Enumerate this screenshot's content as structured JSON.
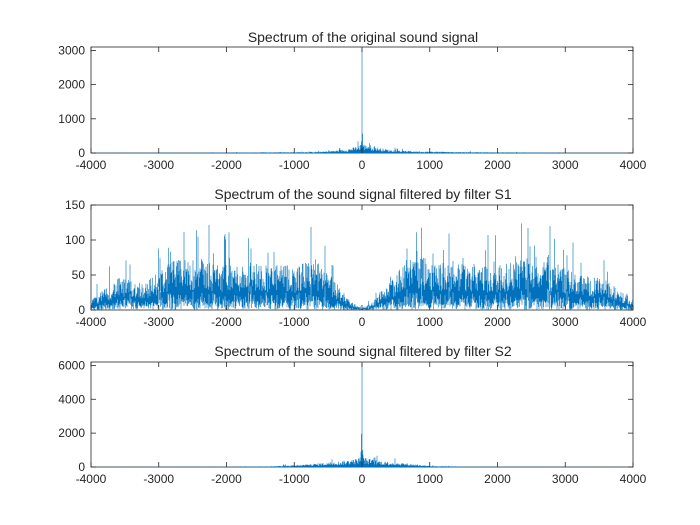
{
  "figure": {
    "background": "#ffffff",
    "axes_color": "#262626",
    "line_color": "#0072BD"
  },
  "chart_data": [
    {
      "type": "line",
      "title": "Spectrum of the original sound signal",
      "xlabel": "",
      "ylabel": "",
      "xlim": [
        -4000,
        4000
      ],
      "ylim": [
        0,
        3100
      ],
      "xticks": [
        -4000,
        -3000,
        -2000,
        -1000,
        0,
        1000,
        2000,
        3000,
        4000
      ],
      "xtick_labels": [
        "-4000",
        "-3000",
        "-2000",
        "-1000",
        "0",
        "1000",
        "2000",
        "3000",
        "4000"
      ],
      "yticks": [
        0,
        1000,
        2000,
        3000
      ],
      "ytick_labels": [
        "0",
        "1000",
        "2000",
        "3000"
      ],
      "grid": false,
      "envelope": {
        "x": [
          -4000,
          -3000,
          -2000,
          -1500,
          -1000,
          -600,
          -400,
          -250,
          -150,
          -80,
          -40,
          -10,
          0,
          10,
          40,
          80,
          150,
          250,
          400,
          600,
          1000,
          1500,
          2000,
          3000,
          4000
        ],
        "y": [
          10,
          15,
          25,
          40,
          55,
          80,
          150,
          200,
          300,
          380,
          450,
          700,
          3050,
          700,
          450,
          550,
          420,
          300,
          200,
          130,
          90,
          60,
          40,
          20,
          10
        ]
      }
    },
    {
      "type": "line",
      "title": "Spectrum of the sound signal filtered by filter S1",
      "xlabel": "",
      "ylabel": "",
      "xlim": [
        -4000,
        4000
      ],
      "ylim": [
        0,
        150
      ],
      "xticks": [
        -4000,
        -3000,
        -2000,
        -1000,
        0,
        1000,
        2000,
        3000,
        4000
      ],
      "xtick_labels": [
        "-4000",
        "-3000",
        "-2000",
        "-1000",
        "0",
        "1000",
        "2000",
        "3000",
        "4000"
      ],
      "yticks": [
        0,
        50,
        100,
        150
      ],
      "ytick_labels": [
        "0",
        "50",
        "100",
        "150"
      ],
      "grid": false,
      "envelope": {
        "x": [
          -4000,
          -3600,
          -3200,
          -2800,
          -2400,
          -2000,
          -1600,
          -1300,
          -1000,
          -700,
          -500,
          -300,
          -150,
          0,
          150,
          300,
          500,
          700,
          1000,
          1300,
          1600,
          2000,
          2400,
          2800,
          3200,
          3600,
          4000
        ],
        "y": [
          25,
          80,
          70,
          125,
          130,
          110,
          120,
          115,
          110,
          130,
          90,
          50,
          20,
          5,
          20,
          50,
          90,
          130,
          130,
          115,
          120,
          110,
          130,
          120,
          90,
          75,
          25
        ]
      }
    },
    {
      "type": "line",
      "title": "Spectrum of the sound signal filtered by filter S2",
      "xlabel": "",
      "ylabel": "",
      "xlim": [
        -4000,
        4000
      ],
      "ylim": [
        0,
        6200
      ],
      "xticks": [
        -4000,
        -3000,
        -2000,
        -1000,
        0,
        1000,
        2000,
        3000,
        4000
      ],
      "xtick_labels": [
        "-4000",
        "-3000",
        "-2000",
        "-1000",
        "0",
        "1000",
        "2000",
        "3000",
        "4000"
      ],
      "yticks": [
        0,
        2000,
        4000,
        6000
      ],
      "ytick_labels": [
        "0",
        "2000",
        "4000",
        "6000"
      ],
      "grid": false,
      "envelope": {
        "x": [
          -4000,
          -3000,
          -2000,
          -1500,
          -1000,
          -700,
          -500,
          -300,
          -150,
          -80,
          -20,
          0,
          20,
          80,
          150,
          300,
          500,
          700,
          1000,
          1500,
          2000,
          3000,
          4000
        ],
        "y": [
          10,
          15,
          30,
          60,
          200,
          400,
          550,
          700,
          900,
          1000,
          1200,
          6100,
          1200,
          1000,
          900,
          700,
          550,
          400,
          120,
          50,
          25,
          15,
          10
        ]
      }
    }
  ]
}
